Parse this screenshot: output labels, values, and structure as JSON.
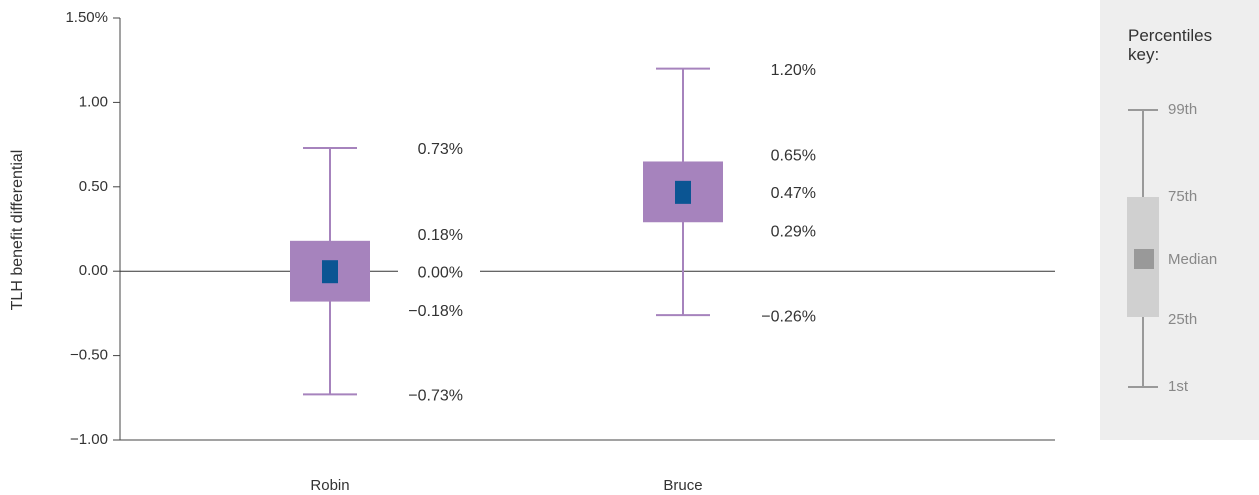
{
  "chart_data": {
    "type": "box",
    "y_axis_label": "TLH benefit differential",
    "categories": [
      "Robin",
      "Bruce"
    ],
    "ylim": [
      -1,
      1.5
    ],
    "yticks": [
      {
        "value": 1.5,
        "label": "1.50%"
      },
      {
        "value": 1,
        "label": "1.00"
      },
      {
        "value": 0.5,
        "label": "0.50"
      },
      {
        "value": 0,
        "label": "0.00"
      },
      {
        "value": -0.5,
        "label": "−0.50"
      },
      {
        "value": -1,
        "label": "−1.00"
      }
    ],
    "box_color": "#a683bd",
    "median_color": "#0b5593",
    "boxes": [
      {
        "values": {
          "min": -0.73,
          "q1": -0.18,
          "median": 0,
          "q3": 0.18,
          "max": 0.73
        },
        "value_labels": {
          "min": "−0.73%",
          "q1": "−0.18%",
          "median": "0.00%",
          "q3": "0.18%",
          "max": "0.73%"
        }
      },
      {
        "values": {
          "min": -0.26,
          "q1": 0.29,
          "median": 0.47,
          "q3": 0.65,
          "max": 1.2
        },
        "value_labels": {
          "min": "−0.26%",
          "q1": "0.29%",
          "median": "0.47%",
          "q3": "0.65%",
          "max": "1.20%"
        }
      }
    ],
    "key": {
      "title": "Percentiles key:",
      "labels": [
        "99th",
        "75th",
        "Median",
        "25th",
        "1st"
      ]
    }
  }
}
